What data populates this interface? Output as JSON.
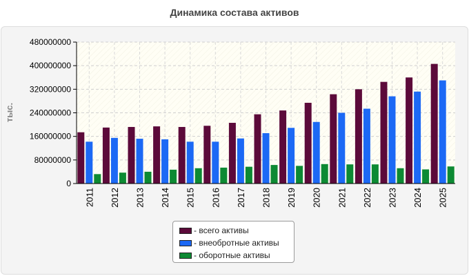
{
  "chart_data": {
    "type": "bar",
    "title": "Динамика состава активов",
    "ylabel": "тыс.",
    "xlabel": "",
    "ylim": [
      0,
      480000000
    ],
    "yticks": [
      0,
      80000000,
      160000000,
      240000000,
      320000000,
      400000000,
      480000000
    ],
    "ytick_labels": [
      "0",
      "80000000",
      "160000000",
      "240000000",
      "320000000",
      "400000000",
      "480000000"
    ],
    "categories": [
      "2011",
      "2012",
      "2013",
      "2014",
      "2015",
      "2016",
      "2017",
      "2018",
      "2019",
      "2020",
      "2021",
      "2022",
      "2023",
      "2024",
      "2025"
    ],
    "grid": true,
    "legend_position": "bottom",
    "series": [
      {
        "name": "- всего активы",
        "color": "#5c0a3a",
        "values": [
          174000000,
          190000000,
          192000000,
          194000000,
          192000000,
          196000000,
          206000000,
          235000000,
          248000000,
          274000000,
          303000000,
          320000000,
          345000000,
          360000000,
          406000000
        ]
      },
      {
        "name": "- внеобротные активы",
        "color": "#1c69f5",
        "values": [
          142000000,
          155000000,
          152000000,
          150000000,
          142000000,
          142000000,
          153000000,
          171000000,
          189000000,
          209000000,
          240000000,
          254000000,
          296000000,
          312000000,
          350000000
        ]
      },
      {
        "name": "- оборотные активы",
        "color": "#0d8a33",
        "values": [
          32000000,
          37000000,
          40000000,
          47000000,
          52000000,
          54000000,
          57000000,
          63000000,
          60000000,
          66000000,
          65000000,
          65000000,
          52000000,
          48000000,
          58000000
        ]
      }
    ]
  }
}
